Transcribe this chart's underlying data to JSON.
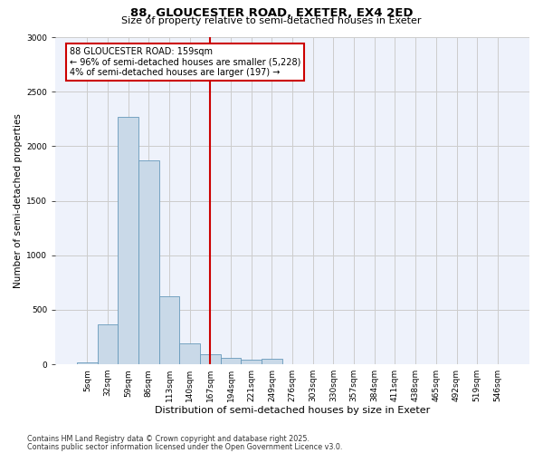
{
  "title1": "88, GLOUCESTER ROAD, EXETER, EX4 2ED",
  "title2": "Size of property relative to semi-detached houses in Exeter",
  "xlabel": "Distribution of semi-detached houses by size in Exeter",
  "ylabel": "Number of semi-detached properties",
  "categories": [
    "5sqm",
    "32sqm",
    "59sqm",
    "86sqm",
    "113sqm",
    "140sqm",
    "167sqm",
    "194sqm",
    "221sqm",
    "249sqm",
    "276sqm",
    "303sqm",
    "330sqm",
    "357sqm",
    "384sqm",
    "411sqm",
    "438sqm",
    "465sqm",
    "492sqm",
    "519sqm",
    "546sqm"
  ],
  "values": [
    20,
    370,
    2270,
    1870,
    620,
    190,
    90,
    55,
    40,
    50,
    0,
    0,
    0,
    0,
    0,
    0,
    0,
    0,
    0,
    0,
    0
  ],
  "bar_color": "#c9d9e8",
  "bar_edge_color": "#6699bb",
  "vline_color": "#cc0000",
  "annotation_text": "88 GLOUCESTER ROAD: 159sqm\n← 96% of semi-detached houses are smaller (5,228)\n4% of semi-detached houses are larger (197) →",
  "annotation_box_color": "#cc0000",
  "ylim": [
    0,
    3000
  ],
  "grid_color": "#cccccc",
  "bg_color": "#eef2fb",
  "footnote1": "Contains HM Land Registry data © Crown copyright and database right 2025.",
  "footnote2": "Contains public sector information licensed under the Open Government Licence v3.0.",
  "title1_fontsize": 9.5,
  "title2_fontsize": 8,
  "xlabel_fontsize": 8,
  "ylabel_fontsize": 7.5,
  "tick_fontsize": 6.5,
  "footnote_fontsize": 5.8
}
